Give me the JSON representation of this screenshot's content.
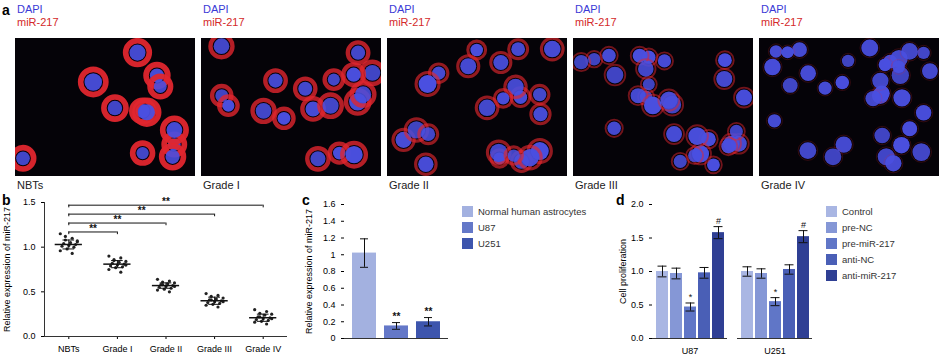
{
  "figure_a": {
    "panel": "a",
    "images": [
      {
        "channels": [
          {
            "text": "DAPI",
            "color": "#3a3ad6"
          },
          {
            "text": "miR-217",
            "color": "#d42a2a"
          }
        ],
        "caption": "NBTs"
      },
      {
        "channels": [
          {
            "text": "DAPI",
            "color": "#3a3ad6"
          },
          {
            "text": "miR-217",
            "color": "#d42a2a"
          }
        ],
        "caption": "Grade I"
      },
      {
        "channels": [
          {
            "text": "DAPI",
            "color": "#3a3ad6"
          },
          {
            "text": "miR-217",
            "color": "#d42a2a"
          }
        ],
        "caption": "Grade II"
      },
      {
        "channels": [
          {
            "text": "DAPI",
            "color": "#3a3ad6"
          },
          {
            "text": "miR-217",
            "color": "#d42a2a"
          }
        ],
        "caption": "Grade III"
      },
      {
        "channels": [
          {
            "text": "DAPI",
            "color": "#3a3ad6"
          },
          {
            "text": "miR-217",
            "color": "#d42a2a"
          }
        ],
        "caption": "Grade IV"
      }
    ]
  },
  "chart_data": [
    {
      "type": "scatter",
      "title": "b",
      "categories": [
        "NBTs",
        "Grade I",
        "Grade II",
        "Grade III",
        "Grade IV"
      ],
      "points": [
        [
          1.15,
          1.1,
          1.08,
          1.06,
          1.05,
          1.04,
          1.03,
          1.02,
          1.01,
          1.0,
          0.98,
          0.96,
          0.93,
          1.12,
          1.07
        ],
        [
          0.9,
          0.88,
          0.86,
          0.84,
          0.83,
          0.82,
          0.81,
          0.8,
          0.79,
          0.78,
          0.77,
          0.75,
          0.72,
          0.85,
          0.8
        ],
        [
          0.64,
          0.62,
          0.61,
          0.6,
          0.59,
          0.58,
          0.57,
          0.56,
          0.55,
          0.54,
          0.53,
          0.52,
          0.5,
          0.58,
          0.56
        ],
        [
          0.48,
          0.46,
          0.45,
          0.43,
          0.42,
          0.41,
          0.4,
          0.39,
          0.38,
          0.37,
          0.36,
          0.35,
          0.33,
          0.41,
          0.39
        ],
        [
          0.3,
          0.28,
          0.26,
          0.25,
          0.24,
          0.22,
          0.21,
          0.2,
          0.19,
          0.18,
          0.17,
          0.16,
          0.14,
          0.22,
          0.2
        ]
      ],
      "values": [
        1.03,
        0.81,
        0.57,
        0.4,
        0.21
      ],
      "errors": [
        0.05,
        0.04,
        0.03,
        0.04,
        0.04
      ],
      "color": "#222222",
      "ylabel": "Relative expression of miR-217",
      "ylim": [
        0,
        1.5
      ],
      "yticks": [
        {
          "value": 0,
          "label": "0.0"
        },
        {
          "value": 0.5,
          "label": "0.5"
        },
        {
          "value": 1,
          "label": "1.0"
        },
        {
          "value": 1.5,
          "label": "1.5"
        }
      ],
      "annotations": [
        {
          "from": "NBTs",
          "to": "Grade I",
          "y": 1.17,
          "text": "**"
        },
        {
          "from": "NBTs",
          "to": "Grade II",
          "y": 1.27,
          "text": "**"
        },
        {
          "from": "NBTs",
          "to": "Grade III",
          "y": 1.37,
          "text": "**"
        },
        {
          "from": "NBTs",
          "to": "Grade IV",
          "y": 1.47,
          "text": "**"
        }
      ]
    },
    {
      "type": "bar",
      "title": "c",
      "categories": [
        "Normal human astrocytes",
        "U87",
        "U251"
      ],
      "values": [
        1.02,
        0.15,
        0.2
      ],
      "errors": [
        0.17,
        0.04,
        0.05
      ],
      "colors": [
        "#a3b1e0",
        "#6478c8",
        "#3d55ad"
      ],
      "ylabel": "Relative expression of miR-217",
      "ylim": [
        0,
        1.6
      ],
      "yticks": [
        0,
        0.2,
        0.4,
        0.6,
        0.8,
        1.0,
        1.2,
        1.4,
        1.6
      ],
      "tick_labels": "y",
      "legend": "right",
      "annotations": [
        {
          "category": "U87",
          "text": "**"
        },
        {
          "category": "U251",
          "text": "**"
        }
      ]
    },
    {
      "type": "bar",
      "title": "d",
      "categories": [
        "U87",
        "U251"
      ],
      "series": [
        {
          "name": "Control",
          "color": "#a9b6e3",
          "values": [
            1.0,
            1.0
          ],
          "errors": [
            0.08,
            0.07
          ]
        },
        {
          "name": "pre-NC",
          "color": "#8597d6",
          "values": [
            0.97,
            0.97
          ],
          "errors": [
            0.08,
            0.07
          ]
        },
        {
          "name": "pre-miR-217",
          "color": "#6076c7",
          "values": [
            0.47,
            0.55
          ],
          "errors": [
            0.06,
            0.06
          ]
        },
        {
          "name": "anti-NC",
          "color": "#4a5fb6",
          "values": [
            0.98,
            1.03
          ],
          "errors": [
            0.08,
            0.07
          ]
        },
        {
          "name": "anti-miR-217",
          "color": "#2f3f94",
          "values": [
            1.58,
            1.52
          ],
          "errors": [
            0.09,
            0.09
          ]
        }
      ],
      "ylabel": "Cell proliferation",
      "ylim": [
        0,
        2.0
      ],
      "yticks": [
        {
          "value": 0,
          "label": "0.0"
        },
        {
          "value": 0.5,
          "label": "0.5"
        },
        {
          "value": 1,
          "label": "1.0"
        },
        {
          "value": 1.5,
          "label": "1.5"
        },
        {
          "value": 2,
          "label": "2.0"
        }
      ],
      "legend": "right",
      "annotations": [
        {
          "category": "U87",
          "series": "pre-miR-217",
          "text": "*"
        },
        {
          "category": "U87",
          "series": "anti-miR-217",
          "text": "#"
        },
        {
          "category": "U251",
          "series": "pre-miR-217",
          "text": "*"
        },
        {
          "category": "U251",
          "series": "anti-miR-217",
          "text": "#"
        }
      ]
    }
  ]
}
